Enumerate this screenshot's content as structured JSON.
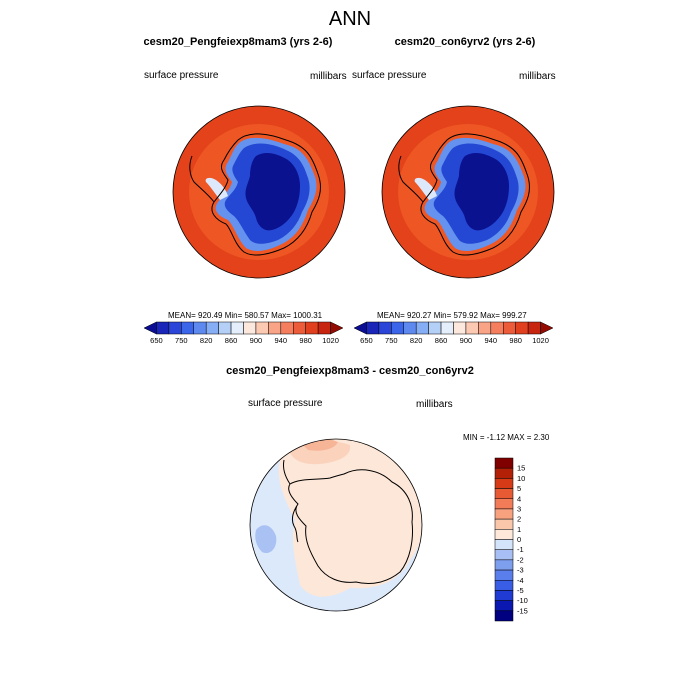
{
  "title": "ANN",
  "colors": {
    "top_scale": [
      "#0b0d92",
      "#1a26b8",
      "#2a45d8",
      "#3c66ea",
      "#5e8aef",
      "#86aef4",
      "#b4d0f7",
      "#e4effb",
      "#fde8de",
      "#fcc9b3",
      "#f9a487",
      "#f47e5e",
      "#ec5b3a",
      "#e0401e",
      "#c82510",
      "#950b02"
    ],
    "diff_scale": [
      "#000080",
      "#0a17b0",
      "#1f3bd4",
      "#3a5de6",
      "#5a7eeb",
      "#7e9eee",
      "#a7bff4",
      "#d3e3fa",
      "#fde8d9",
      "#fbc7ab",
      "#f8a27f",
      "#f27c57",
      "#e85a33",
      "#d63a16",
      "#b32008",
      "#800000"
    ],
    "ocean": "#e3421a",
    "ocean_inner": "#ee5624",
    "ice_edge": "#6592ee",
    "ice_deep": "#0a1290",
    "diff_land": "#fde7d8",
    "diff_ocean": "#dce9fb"
  },
  "panels": [
    {
      "title": "cesm20_Pengfeiexp8mam3 (yrs 2-6)",
      "left_label": "surface pressure",
      "right_label": "millibars",
      "stats": "MEAN= 920.49  Min= 580.57  Max= 1000.31",
      "colorbar_labels": [
        "650",
        "750",
        "820",
        "860",
        "900",
        "940",
        "980",
        "1020"
      ]
    },
    {
      "title": "cesm20_con6yrv2 (yrs 2-6)",
      "left_label": "surface pressure",
      "right_label": "millibars",
      "stats": "MEAN= 920.27  Min= 579.92  Max= 999.27",
      "colorbar_labels": [
        "650",
        "750",
        "820",
        "860",
        "900",
        "940",
        "980",
        "1020"
      ]
    }
  ],
  "difference": {
    "title": "cesm20_Pengfeiexp8mam3 - cesm20_con6yrv2",
    "left_label": "surface pressure",
    "right_label": "millibars",
    "minmax": "MIN =  -1.12 MAX =   2.30",
    "colorbar_labels": [
      "15",
      "10",
      "5",
      "4",
      "3",
      "2",
      "1",
      "0",
      "-1",
      "-2",
      "-3",
      "-4",
      "-5",
      "-10",
      "-15"
    ]
  },
  "chart_data": [
    {
      "type": "heatmap",
      "projection": "south-polar stereographic",
      "title": "cesm20_Pengfeiexp8mam3 (yrs 2-6)",
      "variable": "surface pressure",
      "units": "millibars",
      "mean": 920.49,
      "min": 580.57,
      "max": 1000.31,
      "colorbar_levels": [
        650,
        700,
        750,
        800,
        820,
        840,
        860,
        880,
        900,
        920,
        940,
        960,
        980,
        1000,
        1020
      ]
    },
    {
      "type": "heatmap",
      "projection": "south-polar stereographic",
      "title": "cesm20_con6yrv2 (yrs 2-6)",
      "variable": "surface pressure",
      "units": "millibars",
      "mean": 920.27,
      "min": 579.92,
      "max": 999.27,
      "colorbar_levels": [
        650,
        700,
        750,
        800,
        820,
        840,
        860,
        880,
        900,
        920,
        940,
        960,
        980,
        1000,
        1020
      ]
    },
    {
      "type": "heatmap",
      "projection": "south-polar stereographic",
      "title": "cesm20_Pengfeiexp8mam3 - cesm20_con6yrv2",
      "variable": "surface pressure",
      "units": "millibars",
      "min": -1.12,
      "max": 2.3,
      "colorbar_levels": [
        -15,
        -10,
        -5,
        -4,
        -3,
        -2,
        -1,
        0,
        1,
        2,
        3,
        4,
        5,
        10,
        15
      ]
    }
  ]
}
